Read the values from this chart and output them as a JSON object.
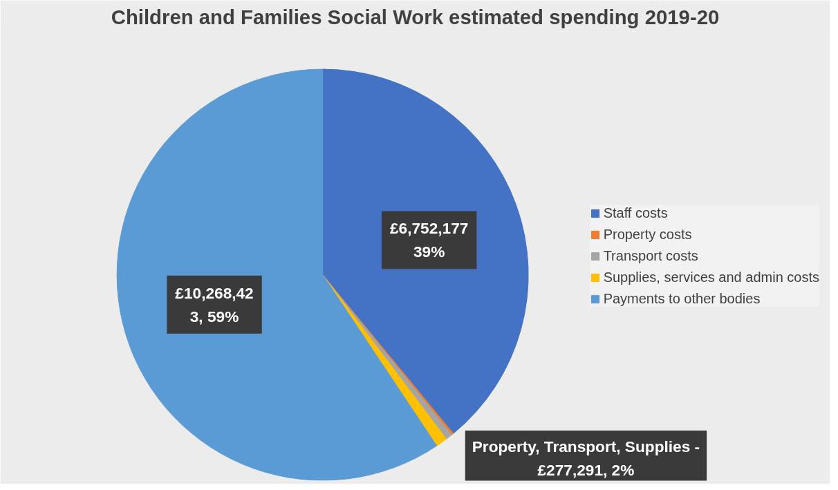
{
  "chart_data": {
    "type": "pie",
    "title": "Children and Families Social Work estimated spending 2019-20",
    "categories": [
      "Staff costs",
      "Property costs",
      "Transport costs",
      "Supplies, services and admin costs",
      "Payments to other bodies"
    ],
    "values": [
      6752177,
      30000,
      90000,
      157291,
      10268423
    ],
    "colors": [
      "#4472c4",
      "#ed7d31",
      "#a5a5a5",
      "#ffc000",
      "#5b9bd5"
    ],
    "value_labels": [
      "£6,752,177\n39%",
      null,
      null,
      null,
      "£10,268,423, 59%"
    ],
    "annotations": [
      "Property, Transport, Supplies -\n£277,291, 2%"
    ],
    "legend": "right"
  }
}
